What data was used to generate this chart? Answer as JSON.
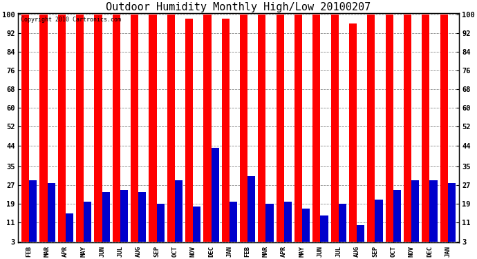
{
  "title": "Outdoor Humidity Monthly High/Low 20100207",
  "copyright": "Copyright 2010 Cartronics.com",
  "categories": [
    "FEB",
    "MAR",
    "APR",
    "MAY",
    "JUN",
    "JUL",
    "AUG",
    "SEP",
    "OCT",
    "NOV",
    "DEC",
    "JAN",
    "FEB",
    "MAR",
    "APR",
    "MAY",
    "JUN",
    "JUL",
    "AUG",
    "SEP",
    "OCT",
    "NOV",
    "DEC",
    "JAN"
  ],
  "high_values": [
    100,
    100,
    100,
    100,
    100,
    100,
    100,
    100,
    100,
    98,
    100,
    98,
    100,
    100,
    100,
    100,
    100,
    100,
    96,
    100,
    100,
    100,
    100,
    100
  ],
  "low_values": [
    29,
    28,
    15,
    20,
    24,
    25,
    24,
    19,
    29,
    18,
    43,
    20,
    31,
    19,
    20,
    17,
    14,
    19,
    10,
    21,
    25,
    29,
    29,
    28
  ],
  "high_color": "#ff0000",
  "low_color": "#0000cc",
  "bg_color": "#ffffff",
  "plot_bg_color": "#ffffff",
  "grid_color": "#888888",
  "yticks": [
    3,
    11,
    19,
    27,
    35,
    44,
    52,
    60,
    68,
    76,
    84,
    92,
    100
  ],
  "ymin": 3,
  "ymax": 100,
  "title_fontsize": 11,
  "bar_width": 0.42
}
